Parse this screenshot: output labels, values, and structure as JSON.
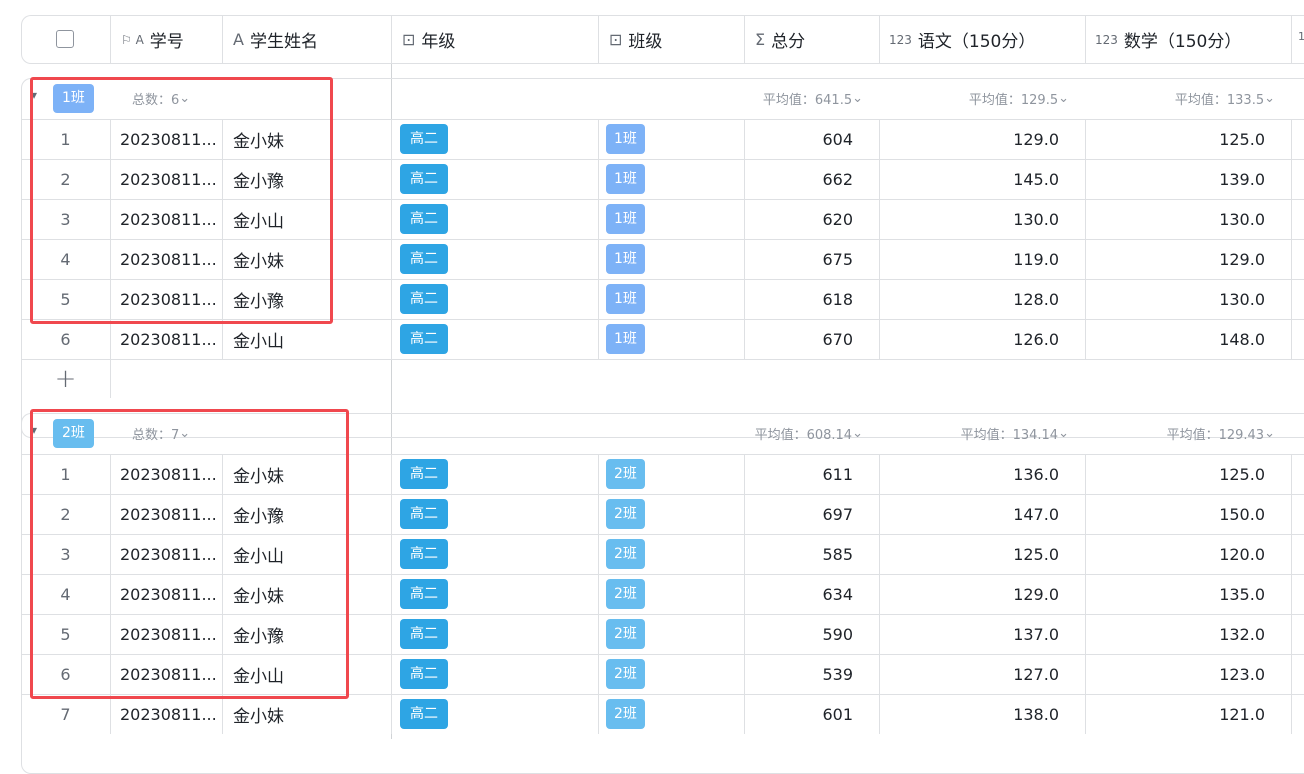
{
  "header": {
    "columns": [
      {
        "label": "学号",
        "icon": "flag-text-icon",
        "glyph": "⚐ A"
      },
      {
        "label": "学生姓名",
        "icon": "text-icon",
        "glyph": "A"
      },
      {
        "label": "年级",
        "icon": "select-icon",
        "glyph": "⊡"
      },
      {
        "label": "班级",
        "icon": "select-icon",
        "glyph": "⊡"
      },
      {
        "label": "总分",
        "icon": "sigma-icon",
        "glyph": "Σ"
      },
      {
        "label": "语文（150分）",
        "icon": "number-icon",
        "glyph": "123"
      },
      {
        "label": "数学（150分）",
        "icon": "number-icon",
        "glyph": "123"
      }
    ]
  },
  "colors": {
    "grade_tag": "#2ea5e4",
    "class1_tag": "#7db2f7",
    "class2_tag": "#68bdef",
    "highlight": "#f0484e"
  },
  "groups": [
    {
      "tag": "1班",
      "count": "总数：6",
      "avg_total": "平均值：641.5",
      "avg_chinese": "平均值：129.5",
      "avg_math": "平均值：133.5",
      "rows": [
        [
          "1",
          "20230811...",
          "金小妹",
          "高二",
          "1班",
          "604",
          "129.0",
          "125.0"
        ],
        [
          "2",
          "20230811...",
          "金小豫",
          "高二",
          "1班",
          "662",
          "145.0",
          "139.0"
        ],
        [
          "3",
          "20230811...",
          "金小山",
          "高二",
          "1班",
          "620",
          "130.0",
          "130.0"
        ],
        [
          "4",
          "20230811...",
          "金小妹",
          "高二",
          "1班",
          "675",
          "119.0",
          "129.0"
        ],
        [
          "5",
          "20230811...",
          "金小豫",
          "高二",
          "1班",
          "618",
          "128.0",
          "130.0"
        ],
        [
          "6",
          "20230811...",
          "金小山",
          "高二",
          "1班",
          "670",
          "126.0",
          "148.0"
        ]
      ]
    },
    {
      "tag": "2班",
      "count": "总数：7",
      "avg_total": "平均值：608.14",
      "avg_chinese": "平均值：134.14",
      "avg_math": "平均值：129.43",
      "rows": [
        [
          "1",
          "20230811...",
          "金小妹",
          "高二",
          "2班",
          "611",
          "136.0",
          "125.0"
        ],
        [
          "2",
          "20230811...",
          "金小豫",
          "高二",
          "2班",
          "697",
          "147.0",
          "150.0"
        ],
        [
          "3",
          "20230811...",
          "金小山",
          "高二",
          "2班",
          "585",
          "125.0",
          "120.0"
        ],
        [
          "4",
          "20230811...",
          "金小妹",
          "高二",
          "2班",
          "634",
          "129.0",
          "135.0"
        ],
        [
          "5",
          "20230811...",
          "金小豫",
          "高二",
          "2班",
          "590",
          "137.0",
          "132.0"
        ],
        [
          "6",
          "20230811...",
          "金小山",
          "高二",
          "2班",
          "539",
          "127.0",
          "123.0"
        ],
        [
          "7",
          "20230811...",
          "金小妹",
          "高二",
          "2班",
          "601",
          "138.0",
          "121.0"
        ]
      ]
    }
  ],
  "add_row": "+"
}
